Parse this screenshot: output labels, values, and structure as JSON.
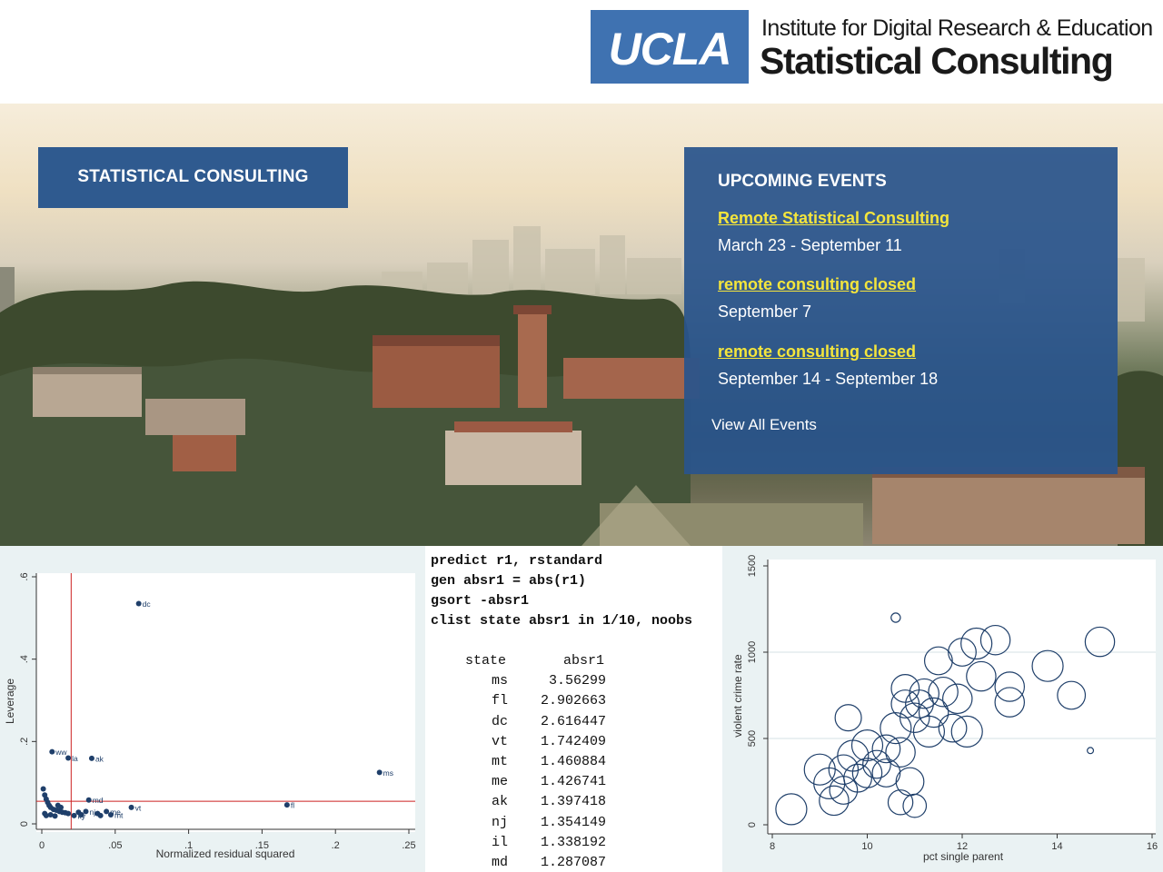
{
  "header": {
    "logo_text": "UCLA",
    "institute": "Institute for Digital Research & Education",
    "title": "Statistical Consulting",
    "brand_color": "#3f72b1"
  },
  "hero": {
    "consulting_button": "STATISTICAL CONSULTING",
    "events": {
      "title": "UPCOMING EVENTS",
      "items": [
        {
          "link": "Remote Statistical Consulting",
          "date": "March 23 - September 11"
        },
        {
          "link": "remote consulting closed",
          "date": "September 7"
        },
        {
          "link": "remote consulting closed",
          "date": "September 14 - September 18"
        }
      ],
      "view_all": "View All Events",
      "link_color": "#f4e53c"
    }
  },
  "code": {
    "commands": [
      "predict r1, rstandard",
      "gen absr1 = abs(r1)",
      "gsort -absr1",
      "clist state absr1 in 1/10, noobs"
    ],
    "table_headers": [
      "state",
      "absr1"
    ],
    "rows": [
      [
        "ms",
        "3.56299"
      ],
      [
        "fl",
        "2.902663"
      ],
      [
        "dc",
        "2.616447"
      ],
      [
        "vt",
        "1.742409"
      ],
      [
        "mt",
        "1.460884"
      ],
      [
        "me",
        "1.426741"
      ],
      [
        "ak",
        "1.397418"
      ],
      [
        "nj",
        "1.354149"
      ],
      [
        "il",
        "1.338192"
      ],
      [
        "md",
        "1.287087"
      ]
    ]
  },
  "chart_data": [
    {
      "type": "scatter",
      "xlabel": "Normalized residual squared",
      "ylabel": "Leverage",
      "xlim": [
        0,
        0.25
      ],
      "ylim": [
        0,
        0.6
      ],
      "xticks": [
        "0",
        ".05",
        ".1",
        ".15",
        ".2",
        ".25"
      ],
      "yticks": [
        "0",
        ".2",
        ".4",
        ".6"
      ],
      "reference_lines": {
        "x": 0.02,
        "y": 0.055,
        "color": "#cc2222"
      },
      "points": [
        {
          "label": "dc",
          "x": 0.066,
          "y": 0.535
        },
        {
          "label": "ms",
          "x": 0.23,
          "y": 0.125
        },
        {
          "label": "fl",
          "x": 0.167,
          "y": 0.046
        },
        {
          "label": "ww",
          "x": 0.007,
          "y": 0.175
        },
        {
          "label": "la",
          "x": 0.018,
          "y": 0.16
        },
        {
          "label": "ak",
          "x": 0.034,
          "y": 0.159
        },
        {
          "label": "vt",
          "x": 0.061,
          "y": 0.04
        },
        {
          "label": "md",
          "x": 0.032,
          "y": 0.058
        },
        {
          "label": "me",
          "x": 0.044,
          "y": 0.03
        },
        {
          "label": "mt",
          "x": 0.047,
          "y": 0.022
        },
        {
          "label": "nj",
          "x": 0.03,
          "y": 0.03
        },
        {
          "label": "ky",
          "x": 0.022,
          "y": 0.02
        },
        {
          "label": "",
          "x": 0.001,
          "y": 0.085
        },
        {
          "label": "",
          "x": 0.002,
          "y": 0.07
        },
        {
          "label": "",
          "x": 0.003,
          "y": 0.06
        },
        {
          "label": "",
          "x": 0.004,
          "y": 0.052
        },
        {
          "label": "",
          "x": 0.005,
          "y": 0.045
        },
        {
          "label": "",
          "x": 0.006,
          "y": 0.04
        },
        {
          "label": "",
          "x": 0.008,
          "y": 0.035
        },
        {
          "label": "",
          "x": 0.01,
          "y": 0.033
        },
        {
          "label": "",
          "x": 0.012,
          "y": 0.03
        },
        {
          "label": "",
          "x": 0.014,
          "y": 0.028
        },
        {
          "label": "",
          "x": 0.016,
          "y": 0.027
        },
        {
          "label": "",
          "x": 0.018,
          "y": 0.025
        },
        {
          "label": "",
          "x": 0.002,
          "y": 0.025
        },
        {
          "label": "",
          "x": 0.003,
          "y": 0.02
        },
        {
          "label": "",
          "x": 0.006,
          "y": 0.022
        },
        {
          "label": "",
          "x": 0.009,
          "y": 0.019
        },
        {
          "label": "",
          "x": 0.011,
          "y": 0.045
        },
        {
          "label": "",
          "x": 0.013,
          "y": 0.04
        },
        {
          "label": "",
          "x": 0.025,
          "y": 0.028
        },
        {
          "label": "",
          "x": 0.027,
          "y": 0.022
        },
        {
          "label": "",
          "x": 0.038,
          "y": 0.025
        },
        {
          "label": "",
          "x": 0.04,
          "y": 0.02
        }
      ]
    },
    {
      "type": "scatter",
      "xlabel": "pct single parent",
      "ylabel": "violent crime rate",
      "xlim": [
        8,
        16
      ],
      "ylim": [
        0,
        1500
      ],
      "xticks": [
        "8",
        "10",
        "12",
        "14",
        "16"
      ],
      "yticks": [
        "0",
        "500",
        "1000",
        "1500"
      ],
      "grid": true,
      "points": [
        {
          "x": 8.4,
          "y": 90,
          "w": 1.0
        },
        {
          "x": 9.0,
          "y": 320,
          "w": 1.0
        },
        {
          "x": 9.2,
          "y": 240,
          "w": 1.0
        },
        {
          "x": 9.3,
          "y": 140,
          "w": 0.95
        },
        {
          "x": 9.5,
          "y": 320,
          "w": 0.95
        },
        {
          "x": 9.5,
          "y": 200,
          "w": 0.9
        },
        {
          "x": 9.6,
          "y": 620,
          "w": 0.85
        },
        {
          "x": 9.7,
          "y": 400,
          "w": 1.0
        },
        {
          "x": 9.8,
          "y": 270,
          "w": 0.9
        },
        {
          "x": 10.0,
          "y": 460,
          "w": 1.0
        },
        {
          "x": 10.0,
          "y": 300,
          "w": 0.95
        },
        {
          "x": 10.2,
          "y": 350,
          "w": 0.9
        },
        {
          "x": 10.4,
          "y": 300,
          "w": 0.9
        },
        {
          "x": 10.4,
          "y": 440,
          "w": 0.9
        },
        {
          "x": 10.6,
          "y": 1200,
          "w": 0.3
        },
        {
          "x": 10.6,
          "y": 560,
          "w": 1.0
        },
        {
          "x": 10.7,
          "y": 420,
          "w": 0.95
        },
        {
          "x": 10.8,
          "y": 790,
          "w": 0.9
        },
        {
          "x": 10.8,
          "y": 700,
          "w": 0.9
        },
        {
          "x": 10.9,
          "y": 250,
          "w": 0.9
        },
        {
          "x": 10.7,
          "y": 130,
          "w": 0.8
        },
        {
          "x": 11.0,
          "y": 620,
          "w": 0.95
        },
        {
          "x": 11.0,
          "y": 110,
          "w": 0.75
        },
        {
          "x": 11.1,
          "y": 700,
          "w": 0.9
        },
        {
          "x": 11.2,
          "y": 760,
          "w": 0.95
        },
        {
          "x": 11.3,
          "y": 540,
          "w": 1.0
        },
        {
          "x": 11.4,
          "y": 650,
          "w": 0.95
        },
        {
          "x": 11.5,
          "y": 950,
          "w": 0.9
        },
        {
          "x": 11.6,
          "y": 770,
          "w": 0.95
        },
        {
          "x": 11.8,
          "y": 560,
          "w": 0.9
        },
        {
          "x": 11.9,
          "y": 730,
          "w": 0.95
        },
        {
          "x": 12.0,
          "y": 1000,
          "w": 0.9
        },
        {
          "x": 12.1,
          "y": 540,
          "w": 1.0
        },
        {
          "x": 12.3,
          "y": 1050,
          "w": 1.0
        },
        {
          "x": 12.4,
          "y": 860,
          "w": 0.95
        },
        {
          "x": 12.7,
          "y": 1070,
          "w": 0.95
        },
        {
          "x": 13.0,
          "y": 800,
          "w": 0.95
        },
        {
          "x": 13.0,
          "y": 710,
          "w": 0.95
        },
        {
          "x": 13.8,
          "y": 920,
          "w": 1.0
        },
        {
          "x": 14.3,
          "y": 750,
          "w": 0.9
        },
        {
          "x": 14.7,
          "y": 430,
          "w": 0.2
        },
        {
          "x": 14.9,
          "y": 1060,
          "w": 0.95
        }
      ]
    }
  ]
}
